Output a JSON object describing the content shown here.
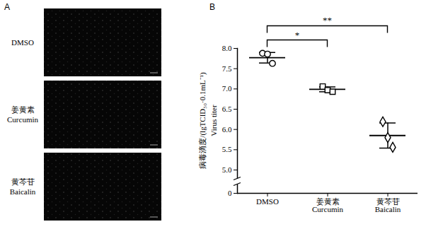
{
  "panel_a": {
    "letter": "A",
    "type": "image_grid",
    "rows": [
      {
        "label": "DMSO"
      },
      {
        "label": "姜黄素\nCurcumin"
      },
      {
        "label": "黄芩苷\nBaicalin"
      }
    ]
  },
  "chart_data": {
    "letter": "B",
    "type": "scatter",
    "color": "#000000",
    "y_label": "病毒滴度/(lgTCID₅₀·0.1mL⁻¹)\nVirus titer",
    "categories": [
      "DMSO",
      "姜黄素\nCurcumin",
      "黄芩苷\nBaicalin"
    ],
    "series": [
      {
        "name": "DMSO",
        "marker": "circle",
        "values": [
          7.88,
          7.86,
          7.63
        ],
        "mean": 7.77,
        "sd": 0.13
      },
      {
        "name": "姜黄素\nCurcumin",
        "marker": "square",
        "values": [
          7.06,
          6.97,
          6.93
        ],
        "mean": 6.99,
        "sd": 0.06
      },
      {
        "name": "黄芩苷\nBaicalin",
        "marker": "diamond",
        "values": [
          6.19,
          5.8,
          5.56
        ],
        "mean": 5.85,
        "sd": 0.31
      }
    ],
    "ylim": [
      0,
      8.0
    ],
    "yticks": [
      0,
      {
        "value": 5,
        "label": "5.0"
      },
      {
        "value": 5.5,
        "label": "5.5"
      },
      {
        "value": 6,
        "label": "6.0"
      },
      {
        "value": 6.5,
        "label": "6.5"
      },
      {
        "value": 7,
        "label": "7.0"
      },
      {
        "value": 7.5,
        "label": "7.5"
      },
      {
        "value": 8,
        "label": "8.0"
      }
    ],
    "annotations": [
      {
        "label": "*",
        "from": "DMSO",
        "to": "姜黄素\nCurcumin",
        "y": 8.2
      },
      {
        "label": "**",
        "from": "DMSO",
        "to": "黄芩苷\nBaicalin",
        "y": 8.55
      }
    ]
  }
}
